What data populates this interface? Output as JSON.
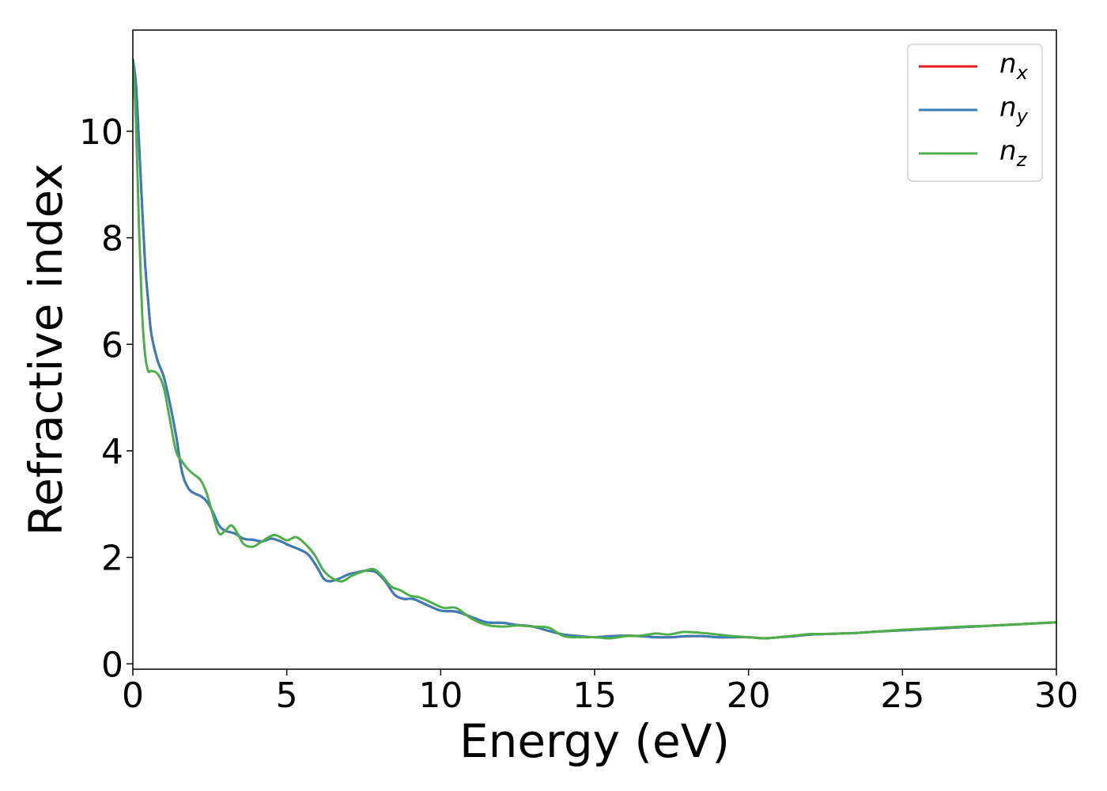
{
  "chart_data": {
    "type": "line",
    "xlabel": "Energy (eV)",
    "ylabel": "Refractive index",
    "xlim": [
      0,
      30
    ],
    "ylim": [
      -0.1,
      11.9
    ],
    "xticks": [
      0,
      5,
      10,
      15,
      20,
      25,
      30
    ],
    "yticks": [
      0,
      2,
      4,
      6,
      8,
      10
    ],
    "grid": false,
    "legend_position": "top-right",
    "series": [
      {
        "name": "n_x",
        "label_base": "n",
        "label_sub": "x",
        "color": "#e41a1c",
        "x": [
          0,
          0.1,
          0.2,
          0.3,
          0.4,
          0.5,
          0.6,
          0.8,
          1.0,
          1.2,
          1.4,
          1.6,
          1.8,
          2.0,
          2.2,
          2.4,
          2.6,
          2.8,
          3.0,
          3.3,
          3.6,
          3.9,
          4.2,
          4.5,
          4.8,
          5.1,
          5.4,
          5.7,
          6.0,
          6.2,
          6.4,
          6.7,
          7.0,
          7.3,
          7.6,
          7.9,
          8.2,
          8.5,
          8.8,
          9.1,
          9.5,
          10.0,
          10.5,
          11.0,
          11.5,
          12.0,
          12.5,
          13.0,
          13.5,
          14.0,
          14.5,
          15.0,
          15.5,
          16.0,
          16.5,
          17.0,
          17.5,
          18.0,
          18.5,
          19.0,
          19.5,
          20.0,
          20.5,
          21.0,
          21.5,
          22.0,
          22.5,
          23.0,
          23.5,
          24.0,
          25.0,
          26.0,
          27.0,
          28.0,
          29.0,
          30.0
        ],
        "y": [
          11.35,
          10.9,
          9.8,
          8.6,
          7.5,
          6.8,
          6.2,
          5.7,
          5.4,
          4.9,
          4.3,
          3.6,
          3.3,
          3.2,
          3.15,
          3.05,
          2.85,
          2.6,
          2.5,
          2.45,
          2.35,
          2.33,
          2.3,
          2.35,
          2.3,
          2.22,
          2.15,
          2.05,
          1.8,
          1.6,
          1.55,
          1.6,
          1.68,
          1.72,
          1.75,
          1.72,
          1.55,
          1.3,
          1.22,
          1.22,
          1.12,
          1.0,
          0.98,
          0.88,
          0.78,
          0.77,
          0.73,
          0.7,
          0.62,
          0.55,
          0.52,
          0.5,
          0.52,
          0.53,
          0.52,
          0.5,
          0.5,
          0.52,
          0.52,
          0.5,
          0.5,
          0.5,
          0.48,
          0.5,
          0.52,
          0.55,
          0.56,
          0.57,
          0.58,
          0.6,
          0.63,
          0.66,
          0.69,
          0.72,
          0.75,
          0.78
        ]
      },
      {
        "name": "n_y",
        "label_base": "n",
        "label_sub": "y",
        "color": "#377eb8",
        "x": [
          0,
          0.1,
          0.2,
          0.3,
          0.4,
          0.5,
          0.6,
          0.8,
          1.0,
          1.2,
          1.4,
          1.6,
          1.8,
          2.0,
          2.2,
          2.4,
          2.6,
          2.8,
          3.0,
          3.3,
          3.6,
          3.9,
          4.2,
          4.5,
          4.8,
          5.1,
          5.4,
          5.7,
          6.0,
          6.2,
          6.4,
          6.7,
          7.0,
          7.3,
          7.6,
          7.9,
          8.2,
          8.5,
          8.8,
          9.1,
          9.5,
          10.0,
          10.5,
          11.0,
          11.5,
          12.0,
          12.5,
          13.0,
          13.5,
          14.0,
          14.5,
          15.0,
          15.5,
          16.0,
          16.5,
          17.0,
          17.5,
          18.0,
          18.5,
          19.0,
          19.5,
          20.0,
          20.5,
          21.0,
          21.5,
          22.0,
          22.5,
          23.0,
          23.5,
          24.0,
          25.0,
          26.0,
          27.0,
          28.0,
          29.0,
          30.0
        ],
        "y": [
          11.35,
          10.9,
          9.8,
          8.6,
          7.5,
          6.8,
          6.2,
          5.7,
          5.4,
          4.9,
          4.3,
          3.6,
          3.3,
          3.2,
          3.15,
          3.05,
          2.85,
          2.6,
          2.5,
          2.45,
          2.35,
          2.33,
          2.3,
          2.35,
          2.3,
          2.22,
          2.15,
          2.05,
          1.8,
          1.6,
          1.55,
          1.6,
          1.68,
          1.72,
          1.75,
          1.72,
          1.55,
          1.3,
          1.22,
          1.22,
          1.12,
          1.0,
          0.98,
          0.88,
          0.78,
          0.77,
          0.73,
          0.7,
          0.62,
          0.55,
          0.52,
          0.5,
          0.52,
          0.53,
          0.52,
          0.5,
          0.5,
          0.52,
          0.52,
          0.5,
          0.5,
          0.5,
          0.48,
          0.5,
          0.52,
          0.55,
          0.56,
          0.57,
          0.58,
          0.6,
          0.63,
          0.66,
          0.69,
          0.72,
          0.75,
          0.78
        ]
      },
      {
        "name": "n_z",
        "label_base": "n",
        "label_sub": "z",
        "color": "#4daf4a",
        "x": [
          0,
          0.1,
          0.2,
          0.3,
          0.4,
          0.5,
          0.6,
          0.8,
          1.0,
          1.2,
          1.4,
          1.6,
          1.8,
          2.0,
          2.2,
          2.4,
          2.6,
          2.8,
          3.0,
          3.2,
          3.4,
          3.6,
          3.9,
          4.2,
          4.6,
          5.0,
          5.3,
          5.6,
          5.9,
          6.2,
          6.5,
          6.8,
          7.1,
          7.4,
          7.8,
          8.1,
          8.4,
          8.7,
          9.0,
          9.3,
          9.7,
          10.1,
          10.5,
          11.0,
          11.5,
          12.0,
          12.5,
          13.0,
          13.5,
          14.0,
          14.5,
          15.0,
          15.5,
          16.0,
          16.5,
          17.0,
          17.4,
          17.9,
          18.5,
          19.0,
          19.5,
          20.0,
          20.5,
          21.0,
          21.5,
          22.0,
          22.5,
          23.0,
          23.5,
          24.0,
          25.0,
          26.0,
          27.0,
          28.0,
          29.0,
          30.0
        ],
        "y": [
          11.3,
          10.2,
          8.2,
          6.6,
          5.8,
          5.5,
          5.5,
          5.45,
          5.2,
          4.6,
          4.0,
          3.8,
          3.65,
          3.55,
          3.45,
          3.2,
          2.8,
          2.45,
          2.5,
          2.6,
          2.45,
          2.25,
          2.2,
          2.3,
          2.42,
          2.32,
          2.38,
          2.25,
          2.05,
          1.75,
          1.6,
          1.55,
          1.65,
          1.72,
          1.78,
          1.65,
          1.45,
          1.38,
          1.28,
          1.25,
          1.15,
          1.05,
          1.05,
          0.85,
          0.73,
          0.7,
          0.72,
          0.7,
          0.68,
          0.52,
          0.5,
          0.5,
          0.48,
          0.52,
          0.53,
          0.57,
          0.55,
          0.6,
          0.58,
          0.55,
          0.52,
          0.5,
          0.48,
          0.5,
          0.53,
          0.56,
          0.56,
          0.57,
          0.58,
          0.6,
          0.64,
          0.67,
          0.7,
          0.72,
          0.75,
          0.78
        ]
      }
    ]
  }
}
